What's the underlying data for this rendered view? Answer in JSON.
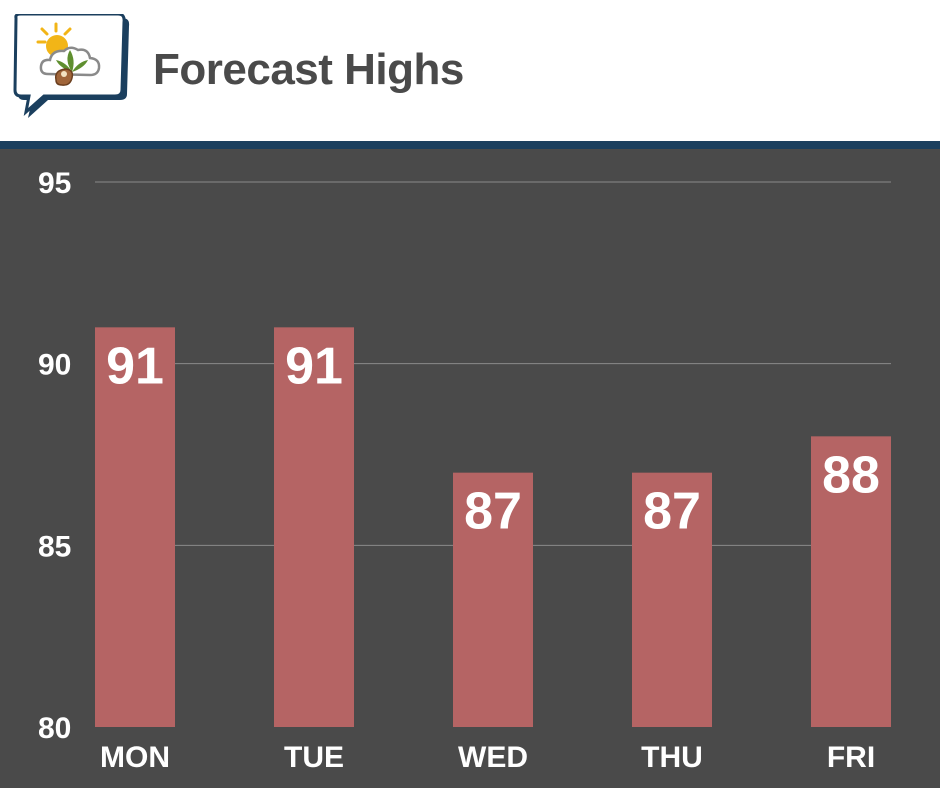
{
  "header": {
    "title": "Forecast Highs",
    "logo_icon": "weather-cannabis-speech-bubble-icon"
  },
  "colors": {
    "background": "#4a4a4a",
    "bar": "#b56464",
    "rule": "#1b3f5e",
    "title": "#4a4a4a"
  },
  "chart_data": {
    "type": "bar",
    "categories": [
      "MON",
      "TUE",
      "WED",
      "THU",
      "FRI"
    ],
    "values": [
      91,
      91,
      87,
      87,
      88
    ],
    "data_labels": [
      "91",
      "91",
      "87",
      "87",
      "88"
    ],
    "y_ticks": [
      "80",
      "85",
      "90",
      "95"
    ],
    "ylim": [
      80,
      95
    ],
    "grid": true,
    "legend": "none"
  }
}
